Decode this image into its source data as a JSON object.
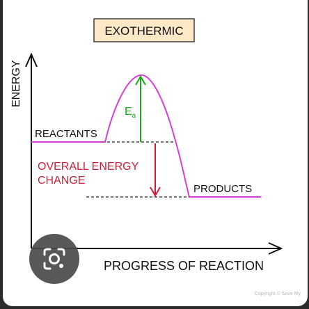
{
  "diagram": {
    "title": "EXOTHERMIC",
    "y_axis_label": "ENERGY",
    "x_axis_label": "PROGRESS OF REACTION",
    "reactants_label": "REACTANTS",
    "products_label": "PRODUCTS",
    "activation_energy_label": "E",
    "activation_energy_subscript": "a",
    "overall_change_line1": "OVERALL ENERGY",
    "overall_change_line2": "CHANGE"
  },
  "colors": {
    "curve": "#d63fd6",
    "activation_arrow": "#18a818",
    "overall_change": "#cc1f3a",
    "title_box_fill": "#fde9c8",
    "axes": "#111111"
  },
  "overlay": {
    "copyright": "Copyright © Save My"
  },
  "icons": {
    "lens_button": "camera-search-icon"
  }
}
